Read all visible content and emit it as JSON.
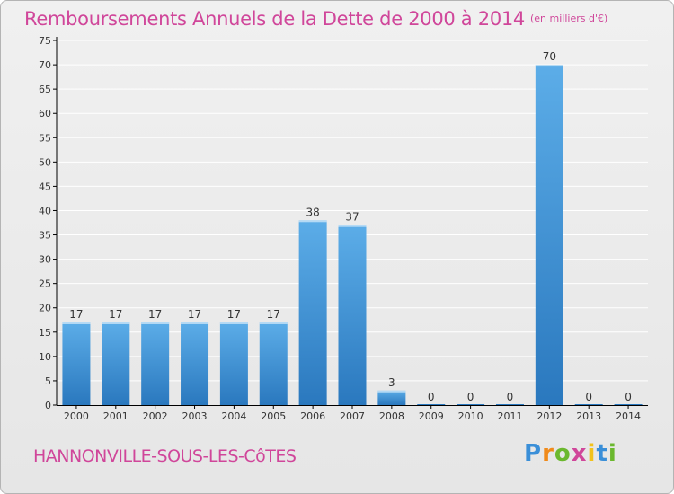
{
  "title": "Remboursements Annuels de la Dette de 2000 à 2014",
  "unit": "(en milliers d'€)",
  "commune": "HANNONVILLE-SOUS-LES-CôTES",
  "logo": {
    "letters": [
      "P",
      "r",
      "o",
      "x",
      "i",
      "t",
      "i"
    ],
    "colors": [
      "#3a8fd8",
      "#f08a1a",
      "#6bb82e",
      "#d0469a",
      "#f2c21a",
      "#3a8fd8",
      "#6bb82e"
    ]
  },
  "colors": {
    "title": "#d0469a",
    "bar_light": "#5cade8",
    "bar_dark": "#2a78be",
    "grid": "#ffffff",
    "axis": "#000000",
    "text": "#333333"
  },
  "chart_data": {
    "type": "bar",
    "categories": [
      "2000",
      "2001",
      "2002",
      "2003",
      "2004",
      "2005",
      "2006",
      "2007",
      "2008",
      "2009",
      "2010",
      "2011",
      "2012",
      "2013",
      "2014"
    ],
    "values": [
      17,
      17,
      17,
      17,
      17,
      17,
      38,
      37,
      3,
      0,
      0,
      0,
      70,
      0,
      0
    ],
    "ylim": [
      0,
      75
    ],
    "yticks": [
      0,
      5,
      10,
      15,
      20,
      25,
      30,
      35,
      40,
      45,
      50,
      55,
      60,
      65,
      70,
      75
    ],
    "grid": true,
    "xlabel": "",
    "ylabel": ""
  }
}
